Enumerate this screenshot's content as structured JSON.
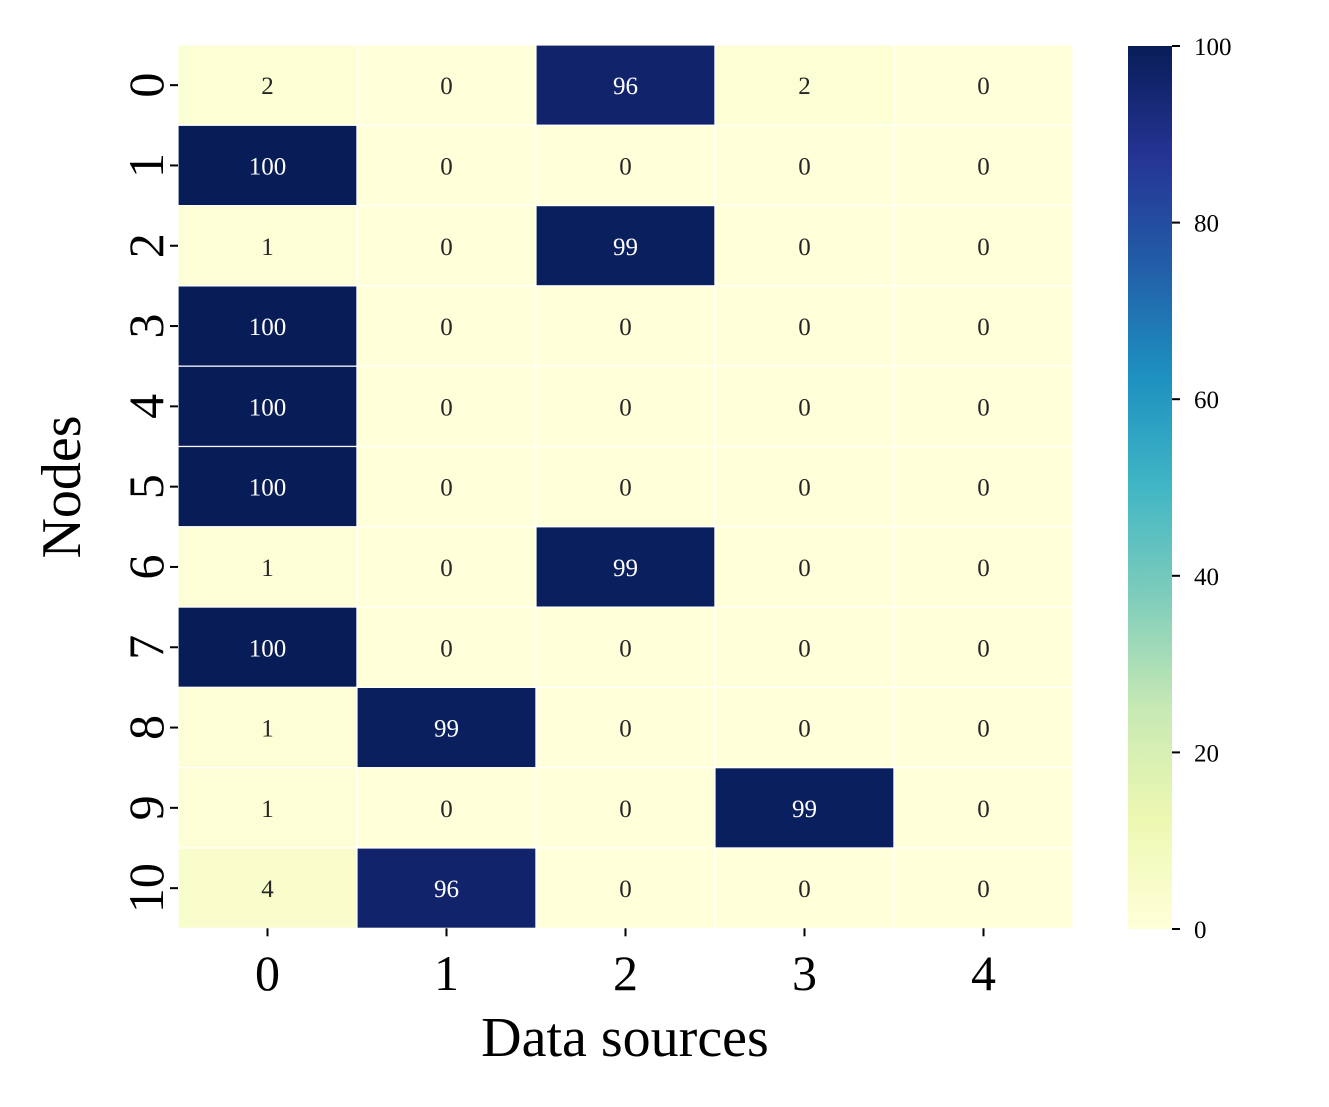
{
  "chart_data": {
    "type": "heatmap",
    "title": "",
    "xlabel": "Data sources",
    "ylabel": "Nodes",
    "x_categories": [
      "0",
      "1",
      "2",
      "3",
      "4"
    ],
    "y_categories": [
      "0",
      "1",
      "2",
      "3",
      "4",
      "5",
      "6",
      "7",
      "8",
      "9",
      "10"
    ],
    "values": [
      [
        2,
        0,
        96,
        2,
        0
      ],
      [
        100,
        0,
        0,
        0,
        0
      ],
      [
        1,
        0,
        99,
        0,
        0
      ],
      [
        100,
        0,
        0,
        0,
        0
      ],
      [
        100,
        0,
        0,
        0,
        0
      ],
      [
        100,
        0,
        0,
        0,
        0
      ],
      [
        1,
        0,
        99,
        0,
        0
      ],
      [
        100,
        0,
        0,
        0,
        0
      ],
      [
        1,
        99,
        0,
        0,
        0
      ],
      [
        1,
        0,
        0,
        99,
        0
      ],
      [
        4,
        96,
        0,
        0,
        0
      ]
    ],
    "colorbar": {
      "colormap": "YlGnBu",
      "range": [
        0,
        100
      ],
      "ticks": [
        "0",
        "20",
        "40",
        "60",
        "80",
        "100"
      ],
      "tick_values": [
        0,
        20,
        40,
        60,
        80,
        100
      ]
    },
    "annotations": "cell values shown in each cell",
    "dark_text_color": "#262626",
    "light_text_color": "#ffffff"
  }
}
